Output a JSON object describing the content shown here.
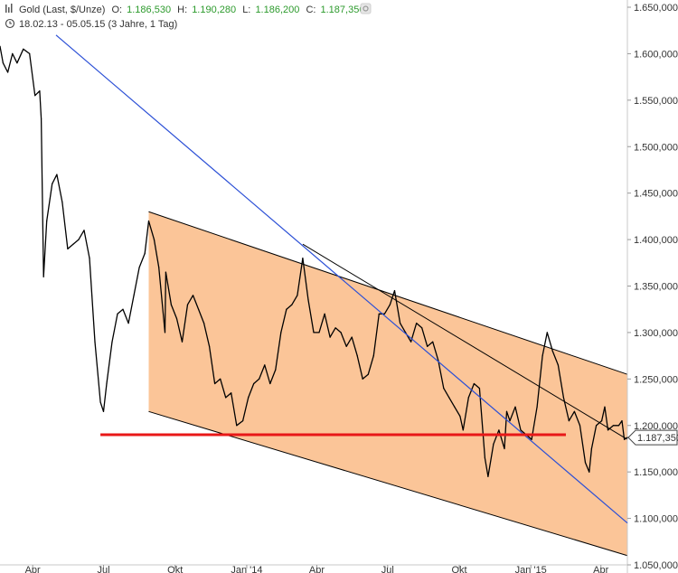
{
  "header": {
    "instrument": "Gold (Last, $/Unze)",
    "open_label": "O:",
    "open_value": "1.186,530",
    "high_label": "H:",
    "high_value": "1.190,280",
    "low_label": "L:",
    "low_value": "1.186,200",
    "close_label": "C:",
    "close_value": "1.187,350",
    "range": "18.02.13 - 05.05.15 (3 Jahre, 1 Tag)",
    "chart_icon": "bar-chart-icon",
    "clock_icon": "clock-icon",
    "settings_icon": "gear-icon"
  },
  "colors": {
    "price": "#000000",
    "channel_fill": "#fbc598",
    "channel_lines": "#000000",
    "trendline": "#2b4fd6",
    "support": "#e81818",
    "ohlc_values": "#2c9a2c"
  },
  "chart_data": {
    "type": "line",
    "title": "",
    "y_axis": {
      "side": "right",
      "ylim": [
        1050,
        1650
      ],
      "ticks": [
        1050,
        1100,
        1150,
        1200,
        1250,
        1300,
        1350,
        1400,
        1450,
        1500,
        1550,
        1600,
        1650
      ],
      "tick_labels": [
        "1.050,000",
        "1.100,000",
        "1.150,000",
        "1.200,000",
        "1.250,000",
        "1.300,000",
        "1.350,000",
        "1.400,000",
        "1.450,000",
        "1.500,000",
        "1.550,000",
        "1.600,000",
        "1.650,000"
      ]
    },
    "x_axis": {
      "range": [
        "2013-02-18",
        "2015-05-05"
      ],
      "ticks": [
        "2013-04-01",
        "2013-07-01",
        "2013-10-01",
        "2014-01-01",
        "2014-04-01",
        "2014-07-01",
        "2014-10-01",
        "2015-01-01",
        "2015-04-01"
      ],
      "tick_labels": [
        "Apr",
        "Jul",
        "Okt",
        "Jan '14",
        "Apr",
        "Jul",
        "Okt",
        "Jan '15",
        "Apr"
      ]
    },
    "current_price_label": "1.187,350",
    "series": [
      {
        "kind": "price",
        "x": [
          "2013-02-18",
          "2013-02-22",
          "2013-02-28",
          "2013-03-06",
          "2013-03-12",
          "2013-03-20",
          "2013-03-28",
          "2013-04-04",
          "2013-04-10",
          "2013-04-12",
          "2013-04-15",
          "2013-04-19",
          "2013-04-26",
          "2013-05-02",
          "2013-05-09",
          "2013-05-16",
          "2013-05-23",
          "2013-05-30",
          "2013-06-06",
          "2013-06-13",
          "2013-06-20",
          "2013-06-27",
          "2013-07-01",
          "2013-07-05",
          "2013-07-12",
          "2013-07-19",
          "2013-07-26",
          "2013-08-02",
          "2013-08-09",
          "2013-08-16",
          "2013-08-23",
          "2013-08-28",
          "2013-09-04",
          "2013-09-10",
          "2013-09-18",
          "2013-09-19",
          "2013-09-26",
          "2013-10-03",
          "2013-10-10",
          "2013-10-17",
          "2013-10-24",
          "2013-10-31",
          "2013-11-07",
          "2013-11-14",
          "2013-11-21",
          "2013-11-28",
          "2013-12-05",
          "2013-12-12",
          "2013-12-19",
          "2013-12-27",
          "2014-01-03",
          "2014-01-10",
          "2014-01-17",
          "2014-01-24",
          "2014-01-31",
          "2014-02-07",
          "2014-02-14",
          "2014-02-21",
          "2014-02-28",
          "2014-03-07",
          "2014-03-14",
          "2014-03-21",
          "2014-03-28",
          "2014-04-04",
          "2014-04-11",
          "2014-04-18",
          "2014-04-25",
          "2014-05-02",
          "2014-05-09",
          "2014-05-16",
          "2014-05-23",
          "2014-05-30",
          "2014-06-06",
          "2014-06-13",
          "2014-06-20",
          "2014-06-27",
          "2014-07-04",
          "2014-07-10",
          "2014-07-17",
          "2014-07-24",
          "2014-07-31",
          "2014-08-07",
          "2014-08-14",
          "2014-08-21",
          "2014-08-28",
          "2014-09-04",
          "2014-09-11",
          "2014-09-18",
          "2014-09-25",
          "2014-10-02",
          "2014-10-06",
          "2014-10-13",
          "2014-10-20",
          "2014-10-27",
          "2014-11-03",
          "2014-11-07",
          "2014-11-14",
          "2014-11-21",
          "2014-11-28",
          "2014-12-01",
          "2014-12-05",
          "2014-12-12",
          "2014-12-19",
          "2014-12-26",
          "2015-01-02",
          "2015-01-09",
          "2015-01-16",
          "2015-01-22",
          "2015-01-29",
          "2015-02-05",
          "2015-02-12",
          "2015-02-19",
          "2015-02-26",
          "2015-03-05",
          "2015-03-12",
          "2015-03-17",
          "2015-03-20",
          "2015-03-26",
          "2015-04-02",
          "2015-04-06",
          "2015-04-10",
          "2015-04-17",
          "2015-04-24",
          "2015-04-28",
          "2015-05-01",
          "2015-05-05"
        ],
        "y": [
          1608,
          1590,
          1580,
          1600,
          1590,
          1605,
          1600,
          1555,
          1560,
          1530,
          1360,
          1420,
          1460,
          1470,
          1440,
          1390,
          1395,
          1400,
          1410,
          1380,
          1290,
          1225,
          1215,
          1245,
          1290,
          1320,
          1325,
          1310,
          1340,
          1370,
          1385,
          1420,
          1400,
          1370,
          1300,
          1365,
          1330,
          1315,
          1290,
          1330,
          1340,
          1325,
          1310,
          1285,
          1245,
          1250,
          1230,
          1235,
          1200,
          1205,
          1230,
          1245,
          1250,
          1265,
          1245,
          1260,
          1300,
          1325,
          1330,
          1340,
          1380,
          1335,
          1300,
          1300,
          1320,
          1295,
          1305,
          1300,
          1285,
          1295,
          1275,
          1250,
          1255,
          1275,
          1320,
          1320,
          1330,
          1345,
          1310,
          1300,
          1290,
          1310,
          1305,
          1285,
          1290,
          1270,
          1240,
          1230,
          1220,
          1210,
          1195,
          1230,
          1245,
          1240,
          1165,
          1145,
          1180,
          1195,
          1175,
          1215,
          1205,
          1220,
          1195,
          1190,
          1185,
          1220,
          1275,
          1300,
          1280,
          1265,
          1230,
          1205,
          1215,
          1200,
          1160,
          1150,
          1175,
          1200,
          1205,
          1220,
          1195,
          1200,
          1200,
          1205,
          1185,
          1187
        ]
      },
      {
        "kind": "channel-upper",
        "x": [
          "2013-08-28",
          "2015-05-05"
        ],
        "y": [
          1430,
          1255
        ]
      },
      {
        "kind": "channel-lower",
        "x": [
          "2013-08-28",
          "2015-05-05"
        ],
        "y": [
          1215,
          1060
        ]
      },
      {
        "kind": "channel-mid-line",
        "x": [
          "2014-03-14",
          "2015-05-05"
        ],
        "y": [
          1395,
          1185
        ]
      },
      {
        "kind": "trendline",
        "x": [
          "2013-05-01",
          "2015-05-05"
        ],
        "y": [
          1620,
          1095
        ]
      },
      {
        "kind": "support",
        "x": [
          "2013-06-27",
          "2015-02-15"
        ],
        "y": [
          1190,
          1190
        ]
      }
    ]
  }
}
